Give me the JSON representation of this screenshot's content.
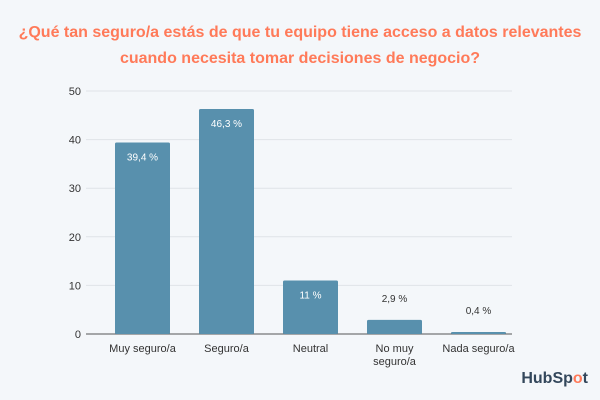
{
  "chart_data": {
    "type": "bar",
    "title": "¿Qué tan seguro/a estás de que tu equipo tiene acceso a datos relevantes cuando necesita tomar decisiones de negocio?",
    "categories": [
      "Muy seguro/a",
      "Seguro/a",
      "Neutral",
      "No muy seguro/a",
      "Nada seguro/a"
    ],
    "values": [
      39.4,
      46.3,
      11,
      2.9,
      0.4
    ],
    "data_labels": [
      "39,4 %",
      "46,3 %",
      "11 %",
      "2,9 %",
      "0,4 %"
    ],
    "ylim": [
      0,
      50
    ],
    "yticks": [
      0,
      10,
      20,
      30,
      40,
      50
    ],
    "grid": true,
    "xlabel": "",
    "ylabel": "",
    "colors": {
      "bar": "#5890ad",
      "title": "#ff7a59",
      "grid": "#dfe3e8"
    }
  },
  "logo": "HubSpot"
}
